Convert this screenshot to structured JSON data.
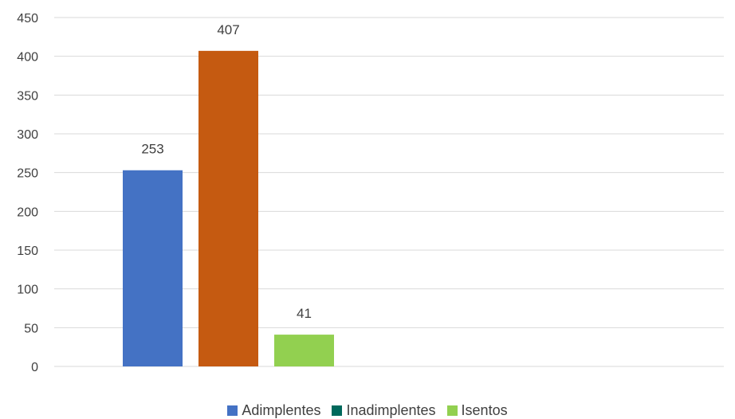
{
  "chart_data": {
    "type": "bar",
    "title": "",
    "xlabel": "",
    "ylabel": "",
    "ylim": [
      0,
      450
    ],
    "yticks": [
      0,
      50,
      100,
      150,
      200,
      250,
      300,
      350,
      400,
      450
    ],
    "grid": true,
    "legend_position": "bottom",
    "series": [
      {
        "name": "Adimplentes",
        "values": [
          253
        ],
        "color": "#4472C4"
      },
      {
        "name": "Inadimplentes",
        "values": [
          0
        ],
        "color": "#00695C"
      },
      {
        "name": "Isentos",
        "values": [
          41
        ],
        "color": "#92D050"
      }
    ],
    "extra_bars": [
      {
        "value": 407,
        "color": "#C55A11"
      }
    ],
    "bars": [
      {
        "value": 253,
        "label": "253",
        "color": "#4472C4"
      },
      {
        "value": 407,
        "label": "407",
        "color": "#C55A11"
      },
      {
        "value": 41,
        "label": "41",
        "color": "#92D050"
      }
    ],
    "legend": [
      {
        "label": "Adimplentes",
        "color": "#4472C4"
      },
      {
        "label": "Inadimplentes",
        "color": "#00695C"
      },
      {
        "label": "Isentos",
        "color": "#92D050"
      }
    ]
  }
}
